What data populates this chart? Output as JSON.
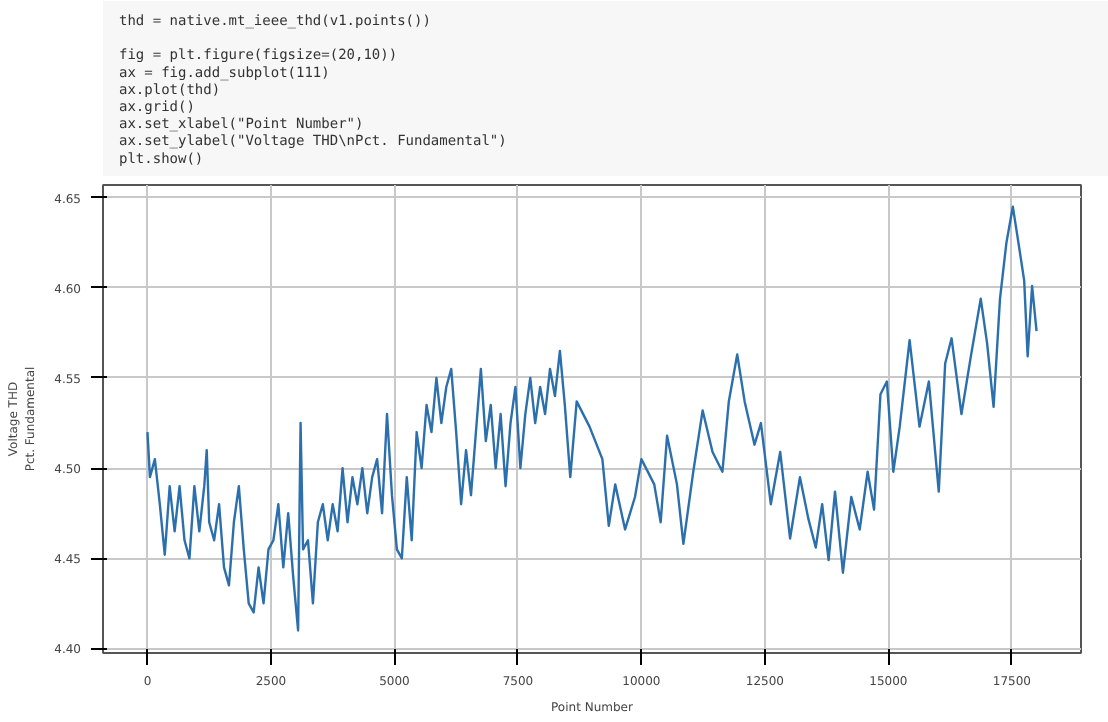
{
  "chart_data": {
    "type": "line",
    "xlabel": "Point Number",
    "ylabel": "Voltage THD\nPct. Fundamental",
    "annotations": [
      "thd = native.mt_ieee_thd(v1.points())",
      "fig = plt.figure(figsize=(20,10))",
      "ax = fig.add_subplot(111)",
      "ax.plot(thd)",
      "ax.grid()",
      "ax.set_xlabel(\"Point Number\")",
      "ax.set_ylabel(\"Voltage THD\\nPct. Fundamental\")",
      "plt.show()"
    ],
    "xlim": [
      -900,
      18900
    ],
    "ylim": [
      4.3975,
      4.657
    ],
    "xticks": [
      0,
      2500,
      5000,
      7500,
      10000,
      12500,
      15000,
      17500
    ],
    "yticks": [
      {
        "value": 4.4,
        "label": "4.40"
      },
      {
        "value": 4.45,
        "label": "4.45"
      },
      {
        "value": 4.5,
        "label": "4.50"
      },
      {
        "value": 4.55,
        "label": "4.55"
      },
      {
        "value": 4.6,
        "label": "4.60"
      },
      {
        "value": 4.65,
        "label": "4.65"
      }
    ],
    "grid": true,
    "marker": "none",
    "line_style": "solid",
    "series": [
      {
        "color": "#2c6fad",
        "x": [
          0,
          50,
          150,
          250,
          350,
          450,
          550,
          650,
          750,
          850,
          950,
          1050,
          1150,
          1200,
          1250,
          1350,
          1450,
          1550,
          1650,
          1750,
          1850,
          1950,
          2050,
          2150,
          2250,
          2350,
          2450,
          2550,
          2650,
          2750,
          2850,
          2950,
          3050,
          3100,
          3150,
          3250,
          3350,
          3450,
          3550,
          3650,
          3750,
          3850,
          3950,
          4050,
          4150,
          4250,
          4350,
          4450,
          4550,
          4650,
          4750,
          4850,
          4950,
          5050,
          5150,
          5250,
          5350,
          5450,
          5550,
          5650,
          5750,
          5850,
          5950,
          6050,
          6150,
          6250,
          6350,
          6450,
          6550,
          6650,
          6750,
          6850,
          6950,
          7050,
          7150,
          7250,
          7350,
          7450,
          7550,
          7650,
          7750,
          7850,
          7950,
          8050,
          8150,
          8250,
          8350,
          8450,
          8560,
          8690,
          8950,
          9210,
          9340,
          9470,
          9670,
          9870,
          10000,
          10260,
          10390,
          10520,
          10720,
          10850,
          11050,
          11240,
          11440,
          11640,
          11770,
          11940,
          12090,
          12290,
          12420,
          12620,
          12810,
          13010,
          13210,
          13380,
          13530,
          13660,
          13790,
          13920,
          14080,
          14250,
          14420,
          14580,
          14710,
          14840,
          14970,
          15100,
          15230,
          15430,
          15630,
          15820,
          16020,
          16150,
          16280,
          16480,
          16670,
          16870,
          17000,
          17130,
          17260,
          17390,
          17520,
          17650,
          17750,
          17820,
          17910,
          18000
        ],
        "values": [
          4.52,
          4.495,
          4.505,
          4.48,
          4.452,
          4.49,
          4.465,
          4.49,
          4.46,
          4.45,
          4.49,
          4.465,
          4.49,
          4.51,
          4.47,
          4.46,
          4.48,
          4.445,
          4.435,
          4.47,
          4.49,
          4.455,
          4.425,
          4.42,
          4.445,
          4.425,
          4.455,
          4.46,
          4.48,
          4.445,
          4.475,
          4.44,
          4.41,
          4.525,
          4.455,
          4.46,
          4.425,
          4.47,
          4.48,
          4.46,
          4.48,
          4.465,
          4.5,
          4.47,
          4.495,
          4.48,
          4.5,
          4.475,
          4.495,
          4.505,
          4.475,
          4.53,
          4.485,
          4.455,
          4.45,
          4.495,
          4.46,
          4.52,
          4.5,
          4.535,
          4.52,
          4.55,
          4.525,
          4.545,
          4.555,
          4.52,
          4.48,
          4.51,
          4.485,
          4.52,
          4.555,
          4.515,
          4.535,
          4.5,
          4.53,
          4.49,
          4.525,
          4.545,
          4.5,
          4.53,
          4.55,
          4.525,
          4.545,
          4.53,
          4.555,
          4.54,
          4.565,
          4.535,
          4.495,
          4.537,
          4.523,
          4.505,
          4.468,
          4.491,
          4.466,
          4.484,
          4.505,
          4.491,
          4.47,
          4.518,
          4.491,
          4.458,
          4.498,
          4.532,
          4.509,
          4.498,
          4.537,
          4.563,
          4.537,
          4.513,
          4.525,
          4.48,
          4.509,
          4.461,
          4.495,
          4.472,
          4.456,
          4.48,
          4.449,
          4.487,
          4.442,
          4.484,
          4.466,
          4.498,
          4.477,
          4.541,
          4.548,
          4.498,
          4.523,
          4.571,
          4.523,
          4.548,
          4.487,
          4.558,
          4.572,
          4.53,
          4.562,
          4.594,
          4.569,
          4.534,
          4.594,
          4.625,
          4.645,
          4.622,
          4.604,
          4.562,
          4.601,
          4.576
        ]
      }
    ]
  }
}
